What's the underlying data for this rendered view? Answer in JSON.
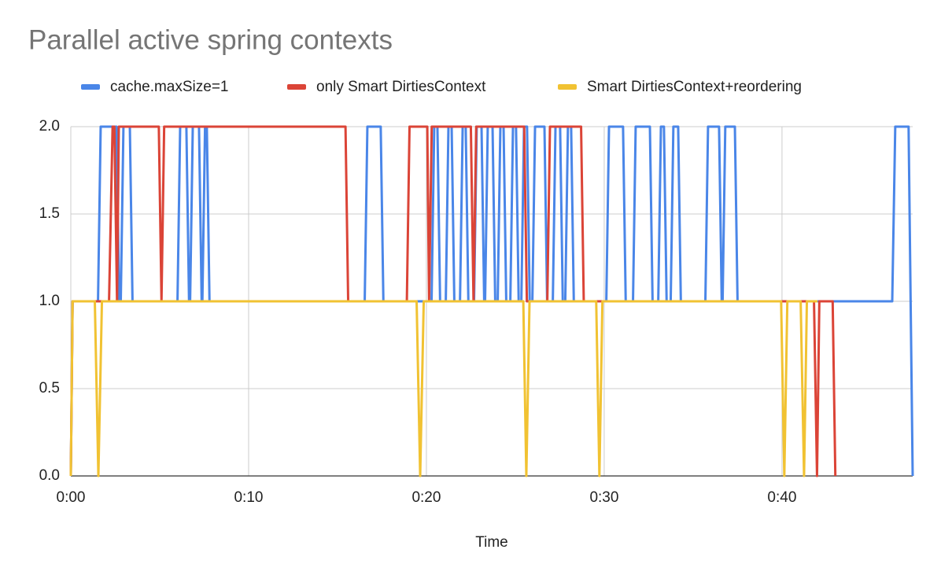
{
  "chart_data": {
    "type": "line",
    "title": "Parallel active spring contexts",
    "x_label": "Time",
    "xlim": [
      0,
      47.35
    ],
    "xticks": [
      {
        "value": 0,
        "label": "0:00"
      },
      {
        "value": 10,
        "label": "0:10"
      },
      {
        "value": 20,
        "label": "0:20"
      },
      {
        "value": 30,
        "label": "0:30"
      },
      {
        "value": 40,
        "label": "0:40"
      }
    ],
    "ylim": [
      0,
      2
    ],
    "yticks": [
      {
        "value": 0,
        "label": "0.0"
      },
      0.5,
      {
        "value": 1,
        "label": "1.0"
      },
      1.5,
      {
        "value": 2,
        "label": "2.0"
      }
    ],
    "grid": true,
    "legend": "top",
    "series": [
      {
        "name": "cache.maxSize=1",
        "color": "#4a86e8",
        "x": [
          0,
          0.1,
          1.53,
          1.68,
          2.57,
          2.72,
          2.81,
          2.96,
          3.32,
          3.47,
          6.0,
          6.15,
          6.5,
          6.65,
          6.71,
          6.86,
          7.21,
          7.36,
          7.4,
          7.55,
          7.65,
          7.8,
          16.53,
          16.68,
          17.43,
          17.58,
          20.29,
          20.44,
          20.62,
          20.77,
          21.09,
          21.24,
          21.42,
          21.57,
          21.89,
          22.04,
          22.21,
          22.36,
          22.68,
          22.83,
          23.1,
          23.25,
          23.3,
          23.45,
          23.72,
          23.87,
          24.01,
          24.16,
          24.34,
          24.49,
          24.72,
          24.87,
          25.04,
          25.19,
          25.34,
          25.49,
          25.66,
          25.81,
          25.96,
          26.11,
          26.64,
          26.79,
          27.11,
          27.26,
          27.52,
          27.67,
          27.81,
          27.96,
          28.14,
          28.29,
          30.12,
          30.27,
          31.06,
          31.21,
          31.62,
          31.77,
          32.57,
          32.72,
          33.04,
          33.19,
          33.36,
          33.51,
          33.74,
          33.89,
          34.16,
          34.31,
          35.69,
          35.84,
          36.46,
          36.61,
          36.66,
          36.81,
          37.35,
          37.5,
          46.2,
          46.37,
          47.12,
          47.35
        ],
        "values": [
          0,
          1,
          1,
          2,
          2,
          1,
          1,
          2,
          2,
          1,
          1,
          2,
          2,
          1,
          1,
          2,
          2,
          1,
          1,
          2,
          2,
          1,
          1,
          2,
          2,
          1,
          1,
          2,
          2,
          1,
          1,
          2,
          2,
          1,
          1,
          2,
          2,
          1,
          1,
          2,
          2,
          1,
          1,
          2,
          2,
          1,
          1,
          2,
          2,
          1,
          1,
          2,
          2,
          1,
          1,
          2,
          2,
          1,
          1,
          2,
          2,
          1,
          1,
          2,
          2,
          1,
          1,
          2,
          2,
          1,
          1,
          2,
          2,
          1,
          1,
          2,
          2,
          1,
          1,
          2,
          2,
          1,
          1,
          2,
          2,
          1,
          1,
          2,
          2,
          1,
          1,
          2,
          2,
          1,
          1,
          2,
          2,
          0
        ]
      },
      {
        "name": "only Smart DirtiesContext",
        "color": "#db4437",
        "x": [
          0,
          0.1,
          2.15,
          2.35,
          2.45,
          2.6,
          2.7,
          4.95,
          5.1,
          5.25,
          15.45,
          15.6,
          18.9,
          19.05,
          20.05,
          20.15,
          20.3,
          22.5,
          22.65,
          22.8,
          25.5,
          25.65,
          26.8,
          26.95,
          28.7,
          28.85,
          41.8,
          41.97,
          42.1,
          42.85,
          43.0
        ],
        "values": [
          0,
          1,
          1,
          2,
          2,
          1,
          2,
          2,
          1,
          2,
          2,
          1,
          1,
          2,
          2,
          1,
          2,
          2,
          1,
          2,
          2,
          1,
          1,
          2,
          2,
          1,
          1,
          0,
          1,
          1,
          0
        ]
      },
      {
        "name": "Smart DirtiesContext+reordering",
        "color": "#f1c232",
        "x": [
          0,
          0.1,
          1.35,
          1.55,
          1.75,
          19.45,
          19.65,
          19.85,
          25.45,
          25.62,
          25.8,
          29.55,
          29.73,
          29.9,
          39.95,
          40.13,
          40.3,
          41.05,
          41.24,
          41.4,
          42.0
        ],
        "values": [
          0,
          1,
          1,
          0,
          1,
          1,
          0,
          1,
          1,
          0,
          1,
          1,
          0,
          1,
          1,
          0,
          1,
          1,
          0,
          1,
          1
        ]
      }
    ]
  }
}
